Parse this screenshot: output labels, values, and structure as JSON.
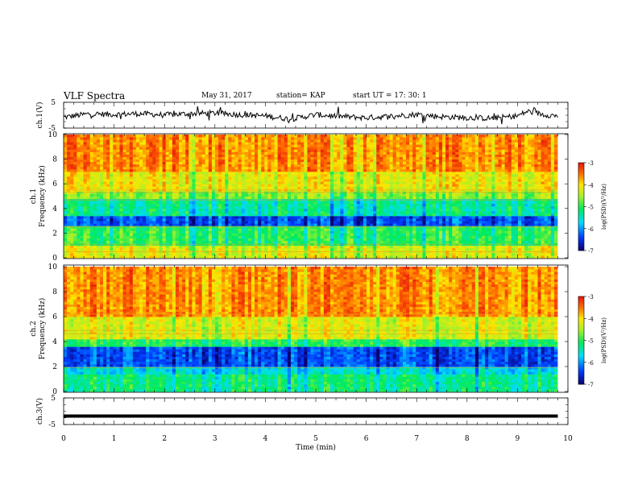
{
  "header": {
    "title": "VLF Spectra",
    "date": "May 31, 2017",
    "station": "station= KAP",
    "start": "start UT =  17: 30: 1"
  },
  "chart_data": [
    {
      "panel": "ch1-waveform",
      "type": "line",
      "ylabel": "ch.1(V)",
      "ylim": [
        -5,
        5
      ],
      "yticks": [
        "5",
        "-5"
      ],
      "xlim": [
        0,
        10
      ],
      "series": [
        {
          "color": "#000000",
          "x": [
            0,
            0.5,
            1,
            1.5,
            2,
            2.5,
            3,
            3.5,
            4,
            4.5,
            5,
            5.5,
            6,
            6.5,
            7,
            7.5,
            8,
            8.5,
            9,
            9.2,
            9.5,
            9.8
          ],
          "values": [
            -0.8,
            0.5,
            0.3,
            0.6,
            0.1,
            0.6,
            0.8,
            0.2,
            -0.3,
            -1.5,
            0.2,
            -0.5,
            -1.0,
            -0.4,
            0.3,
            -0.6,
            -1.0,
            -1.2,
            -0.3,
            1.5,
            0.3,
            -0.3
          ]
        }
      ]
    },
    {
      "panel": "ch1-spectrogram",
      "type": "heatmap",
      "ylabel": "ch.1 Frequency (kHz)",
      "ylim": [
        0,
        10
      ],
      "yticks": [
        "0",
        "2",
        "4",
        "6",
        "8",
        "10"
      ],
      "xlim": [
        0,
        10
      ],
      "color_scale": {
        "label": "log(PSD)(V²/Hz)",
        "range": [
          -7,
          -3
        ],
        "ticks": [
          "-3",
          "-4",
          "-5",
          "-6",
          "-7"
        ]
      },
      "bands": [
        {
          "from": 0,
          "to": 1,
          "level": -4.2
        },
        {
          "from": 1,
          "to": 2.6,
          "level": -5.0
        },
        {
          "from": 2.6,
          "to": 3.4,
          "level": -6.3
        },
        {
          "from": 3.4,
          "to": 4.8,
          "level": -5.3
        },
        {
          "from": 4.8,
          "to": 5.5,
          "level": -4.6
        },
        {
          "from": 5.5,
          "to": 7.0,
          "level": -4.1
        },
        {
          "from": 7.0,
          "to": 10,
          "level": -3.6
        }
      ],
      "lines_khz": [
        0.5,
        1.1,
        2.5,
        4.7,
        5.3,
        5.5
      ]
    },
    {
      "panel": "ch2-spectrogram",
      "type": "heatmap",
      "ylabel": "ch.2 Frequency (kHz)",
      "ylim": [
        0,
        10
      ],
      "yticks": [
        "0",
        "2",
        "4",
        "6",
        "8",
        "10"
      ],
      "xlim": [
        0,
        10
      ],
      "color_scale": {
        "label": "log(PSD)(V²/Hz)",
        "range": [
          -7,
          -3
        ],
        "ticks": [
          "-3",
          "-4",
          "-5",
          "-6",
          "-7"
        ]
      },
      "bands": [
        {
          "from": 0,
          "to": 1.5,
          "level": -5.2
        },
        {
          "from": 1.5,
          "to": 2.0,
          "level": -5.6
        },
        {
          "from": 2.0,
          "to": 3.6,
          "level": -6.3
        },
        {
          "from": 3.6,
          "to": 4.3,
          "level": -5.0
        },
        {
          "from": 4.3,
          "to": 6.0,
          "level": -4.2
        },
        {
          "from": 6.0,
          "to": 10,
          "level": -3.6
        }
      ],
      "lines_khz": [
        1.9,
        4.6,
        4.9,
        6.2
      ]
    },
    {
      "panel": "ch3-waveform",
      "type": "line",
      "ylabel": "ch.3(V)",
      "ylim": [
        -5,
        5
      ],
      "yticks": [
        "5",
        "-5"
      ],
      "xlabel": "Time  (min)",
      "xlim": [
        0,
        10
      ],
      "xticks": [
        "0",
        "1",
        "2",
        "3",
        "4",
        "5",
        "6",
        "7",
        "8",
        "9",
        "10"
      ],
      "series": [
        {
          "color": "#000000",
          "x": [
            0,
            9.8
          ],
          "values": [
            -1.8,
            -1.8
          ]
        }
      ]
    }
  ]
}
